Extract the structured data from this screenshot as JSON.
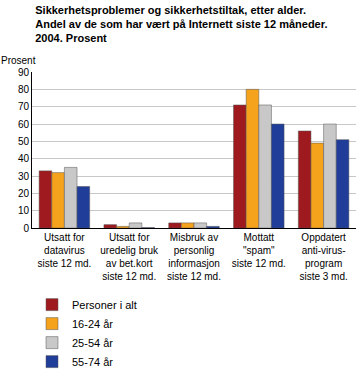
{
  "chart_data": {
    "type": "bar",
    "title": "Sikkerhetsproblemer og sikkerhetstiltak, etter alder.\nAndel av de som har vært på Internett siste 12 måneder.\n2004. Prosent",
    "y_label": "Prosent",
    "categories": [
      "Utsatt for\ndatavirus\nsiste 12 md.",
      "Utsatt for\nuredelig bruk\nav bet.kort\nsiste 12 md.",
      "Misbruk av\npersonlig\ninformasjon\nsiste 12 md.",
      "Mottatt\n\"spam\"\nsiste 12 md.",
      "Oppdatert\nanti-virus-\nprogram\nsiste 3 md."
    ],
    "series": [
      {
        "name": "Personer i alt",
        "color": "#9e1a1f",
        "values": [
          33,
          2,
          3,
          71,
          56
        ]
      },
      {
        "name": "16-24 år",
        "color": "#f5a21c",
        "values": [
          32,
          1,
          3,
          80,
          49
        ]
      },
      {
        "name": "25-54 år",
        "color": "#c8c8c8",
        "values": [
          35,
          3,
          3,
          71,
          60
        ]
      },
      {
        "name": "55-74 år",
        "color": "#1f3d99",
        "values": [
          24,
          0.3,
          1,
          60,
          51
        ]
      }
    ],
    "ylim": [
      0,
      90
    ],
    "yticks": [
      0,
      10,
      20,
      30,
      40,
      50,
      60,
      70,
      80,
      90
    ],
    "grid": true,
    "legend": "bottom"
  }
}
